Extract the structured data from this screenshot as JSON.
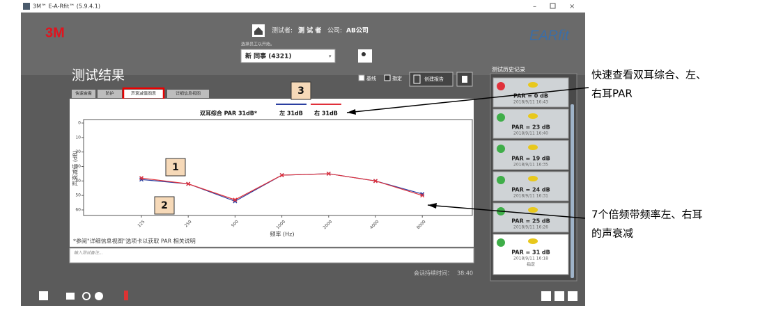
{
  "window": {
    "title": "3M™ E-A-Rfit™ (5.9.4.1)"
  },
  "header": {
    "logo": "3M",
    "tester_label": "测试者:",
    "tester": "测 试 者",
    "company_label": "公司:",
    "company": "AB公司",
    "select_prompt": "选择员工以开始。",
    "employee": "新 同事 (4321)",
    "brand": "EARfit"
  },
  "page": {
    "title": "测试结果",
    "tabs": [
      "快速查看",
      "防护",
      "声衰减值图表",
      "详细信息视图"
    ],
    "options": [
      "基线",
      "指定"
    ],
    "report_button": "创建报告",
    "footnote": "*参阅\"详细信息视图\"选项卡以获取 PAR 相关说明",
    "note_placeholder": "输入测试备注...",
    "session_label": "会话持续时间：",
    "session_time": "38:40"
  },
  "chart_data": {
    "type": "line",
    "summary": "双耳综合 PAR 31dB*",
    "x_label": "频率 (Hz)",
    "y_label": "声衰减值 (dB)",
    "categories": [
      "125",
      "250",
      "500",
      "1000",
      "2000",
      "4000",
      "8000"
    ],
    "series": [
      {
        "name": "左 31dB",
        "color": "#2b3fa0",
        "values": [
          39,
          42,
          54,
          36,
          35,
          40,
          49
        ]
      },
      {
        "name": "右 31dB",
        "color": "#e0303a",
        "values": [
          38,
          42,
          53,
          36,
          35,
          40,
          50
        ]
      }
    ],
    "ylim": [
      0,
      60
    ],
    "yticks": [
      0,
      10,
      20,
      30,
      40,
      50,
      60
    ],
    "y_inverted": true
  },
  "callouts": [
    "1",
    "2",
    "3"
  ],
  "history": {
    "title": "测试历史记录",
    "items": [
      {
        "status": "fail",
        "par": "PAR = 0 dB",
        "time": "2018/9/11 16:43"
      },
      {
        "status": "pass",
        "par": "PAR = 23 dB",
        "time": "2018/9/11 16:40"
      },
      {
        "status": "pass",
        "par": "PAR = 19 dB",
        "time": "2018/9/11 16:35"
      },
      {
        "status": "pass",
        "par": "PAR = 24 dB",
        "time": "2018/9/11 16:31"
      },
      {
        "status": "pass",
        "par": "PAR = 25 dB",
        "time": "2018/9/11 16:26"
      },
      {
        "status": "pass",
        "par": "PAR = 31 dB",
        "time": "2018/9/11 16:18",
        "tag": "指定"
      }
    ]
  },
  "annotations": [
    {
      "lines": [
        "快速查看双耳综合、左、",
        "右耳PAR"
      ]
    },
    {
      "lines": [
        "7个倍频带频率左、右耳",
        "的声衰减"
      ]
    }
  ]
}
